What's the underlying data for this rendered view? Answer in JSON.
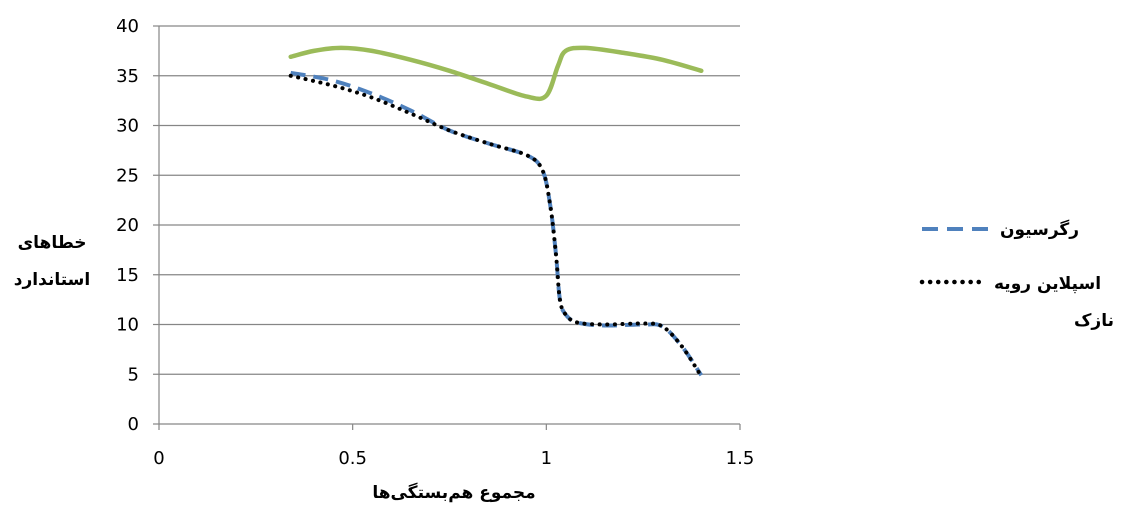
{
  "chart_data": {
    "type": "line",
    "xlabel": "مجموع هم‌بستگی‌ها",
    "ylabel_lines": [
      "خطاهای",
      "استاندارد"
    ],
    "xlim": [
      0,
      1.5
    ],
    "ylim": [
      0,
      40
    ],
    "x_ticks": [
      "0",
      "0.5",
      "1",
      "1.5"
    ],
    "y_ticks": [
      "0",
      "5",
      "10",
      "15",
      "20",
      "25",
      "30",
      "35",
      "40"
    ],
    "grid": "horizontal",
    "legend_position": "right",
    "series": [
      {
        "name": "رگرسیون",
        "name_lines": [
          "رگرسیون"
        ],
        "style": "dashed",
        "color": "#4f81bd",
        "x": [
          0.34,
          0.45,
          0.55,
          0.65,
          0.75,
          0.85,
          0.95,
          0.99,
          1.01,
          1.025,
          1.035,
          1.05,
          1.08,
          1.15,
          1.25,
          1.3,
          1.35,
          1.4
        ],
        "y": [
          35.3,
          34.5,
          33.2,
          31.5,
          29.5,
          28.2,
          27.0,
          25.5,
          22.0,
          17.0,
          12.5,
          11.0,
          10.2,
          9.9,
          10.0,
          9.8,
          7.8,
          4.9
        ]
      },
      {
        "name": "اسپلاین رویه نازک",
        "name_lines": [
          "اسپلاین رویه",
          "نازک"
        ],
        "style": "dotted",
        "color": "#000000",
        "x": [
          0.34,
          0.45,
          0.55,
          0.65,
          0.75,
          0.85,
          0.95,
          0.99,
          1.01,
          1.025,
          1.035,
          1.05,
          1.08,
          1.15,
          1.25,
          1.3,
          1.35,
          1.4
        ],
        "y": [
          35.0,
          34.0,
          32.8,
          31.2,
          29.5,
          28.2,
          27.0,
          25.5,
          22.0,
          17.0,
          12.5,
          11.0,
          10.2,
          10.0,
          10.1,
          9.8,
          7.8,
          4.8
        ]
      },
      {
        "style": "solid",
        "color": "#9bbb59",
        "x": [
          0.34,
          0.4,
          0.47,
          0.55,
          0.65,
          0.75,
          0.85,
          0.95,
          1.0,
          1.03,
          1.05,
          1.1,
          1.2,
          1.3,
          1.4
        ],
        "y": [
          36.9,
          37.5,
          37.8,
          37.5,
          36.6,
          35.5,
          34.2,
          32.9,
          33.0,
          36.0,
          37.5,
          37.8,
          37.3,
          36.6,
          35.5
        ]
      }
    ]
  }
}
